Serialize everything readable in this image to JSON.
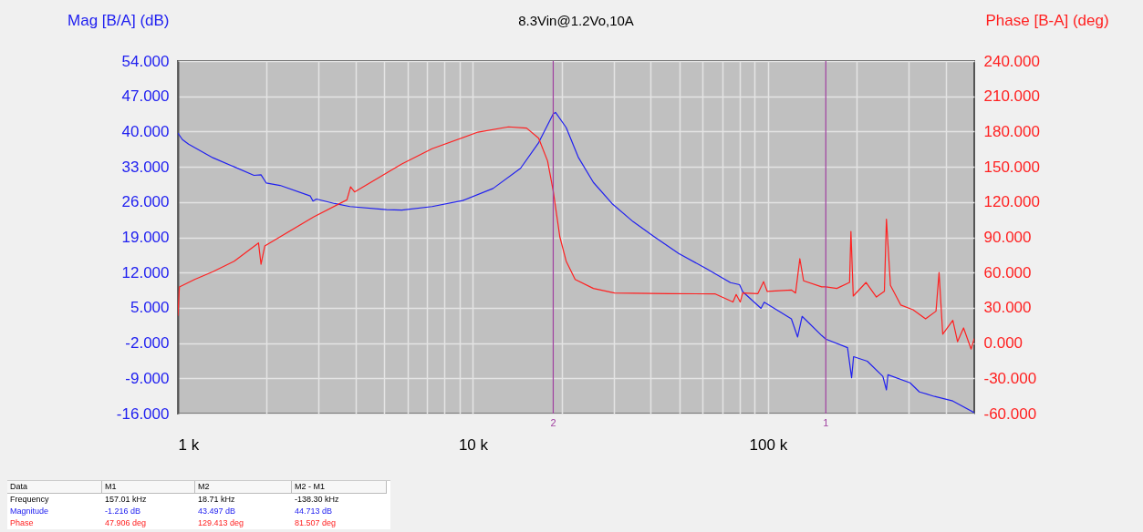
{
  "chart_data": {
    "type": "line",
    "title": "8.3Vin@1.2Vo,10A",
    "ylabel": "Mag [B/A] (dB)",
    "y2label": "Phase [B-A] (deg)",
    "log": "x",
    "grid": true,
    "xlim": [
      1000,
      500000
    ],
    "xticks": [
      {
        "value": 1000,
        "label": "1 k"
      },
      {
        "value": 2000,
        "label": null
      },
      {
        "value": 3000,
        "label": null
      },
      {
        "value": 4000,
        "label": null
      },
      {
        "value": 5000,
        "label": null
      },
      {
        "value": 6000,
        "label": null
      },
      {
        "value": 7000,
        "label": null
      },
      {
        "value": 8000,
        "label": null
      },
      {
        "value": 9000,
        "label": null
      },
      {
        "value": 10000,
        "label": "10 k"
      },
      {
        "value": 20000,
        "label": null
      },
      {
        "value": 30000,
        "label": null
      },
      {
        "value": 40000,
        "label": null
      },
      {
        "value": 50000,
        "label": null
      },
      {
        "value": 60000,
        "label": null
      },
      {
        "value": 70000,
        "label": null
      },
      {
        "value": 80000,
        "label": null
      },
      {
        "value": 90000,
        "label": null
      },
      {
        "value": 100000,
        "label": "100 k"
      },
      {
        "value": 200000,
        "label": null
      },
      {
        "value": 300000,
        "label": null
      },
      {
        "value": 400000,
        "label": null
      }
    ],
    "ylim": [
      -16,
      54
    ],
    "yticks": [
      {
        "value": 54,
        "label": "54.000"
      },
      {
        "value": 47,
        "label": "47.000"
      },
      {
        "value": 40,
        "label": "40.000"
      },
      {
        "value": 33,
        "label": "33.000"
      },
      {
        "value": 26,
        "label": "26.000"
      },
      {
        "value": 19,
        "label": "19.000"
      },
      {
        "value": 12,
        "label": "12.000"
      },
      {
        "value": 5,
        "label": "5.000"
      },
      {
        "value": -2,
        "label": "-2.000"
      },
      {
        "value": -9,
        "label": "-9.000"
      },
      {
        "value": -16,
        "label": "-16.000"
      }
    ],
    "y2lim": [
      -60,
      240
    ],
    "y2ticks": [
      {
        "value": 240,
        "label": "240.000"
      },
      {
        "value": 210,
        "label": "210.000"
      },
      {
        "value": 180,
        "label": "180.000"
      },
      {
        "value": 150,
        "label": "150.000"
      },
      {
        "value": 120,
        "label": "120.000"
      },
      {
        "value": 90,
        "label": "90.000"
      },
      {
        "value": 60,
        "label": "60.000"
      },
      {
        "value": 30,
        "label": "30.000"
      },
      {
        "value": 0,
        "label": "0.000"
      },
      {
        "value": -30,
        "label": "-30.000"
      },
      {
        "value": -60,
        "label": "-60.000"
      }
    ],
    "series": [
      {
        "color": "#2020f0",
        "x": [
          1000,
          1036,
          1087,
          1314,
          1552,
          1811,
          1913,
          1992,
          2220,
          2810,
          2870,
          2950,
          3400,
          3830,
          5090,
          5740,
          7270,
          9230,
          11700,
          14500,
          16700,
          18710,
          19050,
          20700,
          22800,
          25600,
          29600,
          34900,
          41200,
          49800,
          61700,
          74600,
          80100,
          82100,
          94700,
          97100,
          120000,
          126000,
          130500,
          152000,
          157010,
          186000,
          192000,
          195000,
          217000,
          245000,
          252000,
          255000,
          303000,
          326000,
          367000,
          423000,
          500000
        ],
        "values": [
          39.7,
          38.4,
          37.5,
          34.8,
          33.0,
          31.3,
          31.4,
          29.8,
          29.3,
          27.2,
          26.2,
          26.6,
          25.7,
          25.1,
          24.5,
          24.4,
          25.1,
          26.3,
          28.7,
          32.7,
          37.8,
          43.497,
          43.8,
          40.8,
          34.8,
          29.9,
          25.7,
          22.1,
          19.1,
          15.8,
          12.8,
          10.0,
          9.6,
          8.2,
          4.9,
          6.1,
          2.8,
          -0.8,
          3.3,
          -0.5,
          -1.216,
          -2.9,
          -8.9,
          -4.7,
          -5.6,
          -8.6,
          -11.3,
          -8.3,
          -9.9,
          -11.7,
          -12.6,
          -13.5,
          -15.8
        ]
      },
      {
        "color": "#ff2020",
        "axis": "y2",
        "x": [
          1000,
          1012,
          1140,
          1314,
          1552,
          1876,
          1913,
          1970,
          2220,
          2880,
          3740,
          3850,
          3970,
          5090,
          5740,
          7270,
          10400,
          13200,
          15200,
          16700,
          17900,
          18710,
          19700,
          20700,
          22200,
          25600,
          30200,
          46300,
          66300,
          76100,
          78000,
          80500,
          82100,
          92400,
          96600,
          99400,
          120000,
          124000,
          128200,
          132000,
          152000,
          157010,
          171000,
          189000,
          191000,
          194500,
          215000,
          233000,
          248000,
          252000,
          260000,
          282000,
          310000,
          342000,
          371000,
          380000,
          391000,
          423000,
          439000,
          460000,
          488000,
          500000
        ],
        "values": [
          23.2,
          47.8,
          54.2,
          60.7,
          69.7,
          85.2,
          67.1,
          82.6,
          90.4,
          107.2,
          121.9,
          133.0,
          128.6,
          144.7,
          152.4,
          165.4,
          179.5,
          184.0,
          182.9,
          174.3,
          155.0,
          129.413,
          90.4,
          69.7,
          54.2,
          46.5,
          42.6,
          42.1,
          41.8,
          34.9,
          41.3,
          34.9,
          42.6,
          42.1,
          52.3,
          43.9,
          45.2,
          42.6,
          71.8,
          53.0,
          47.8,
          47.906,
          46.5,
          51.6,
          95.0,
          40.0,
          51.6,
          39.2,
          44.1,
          105.4,
          49.1,
          32.3,
          28.4,
          20.6,
          27.1,
          60.0,
          7.6,
          19.3,
          1.2,
          12.9,
          -5.1,
          3.9
        ]
      }
    ],
    "ref_lines": [
      {
        "axis": "x",
        "value": 18710,
        "color": "#a040a0"
      },
      {
        "axis": "x",
        "value": 157010,
        "color": "#a040a0"
      }
    ],
    "annotations": [
      {
        "text": "2",
        "x": 18710,
        "y": -16
      },
      {
        "text": "1",
        "x": 157010,
        "y": -16
      },
      "Data",
      "M1",
      "M2",
      "M2 - M1",
      "Frequency",
      "157.01 kHz",
      "18.71 kHz",
      "-138.30 kHz",
      "Magnitude",
      "-1.216 dB",
      "43.497 dB",
      "44.713 dB",
      "Phase",
      "47.906 deg",
      "129.413 deg",
      "81.507 deg"
    ]
  }
}
